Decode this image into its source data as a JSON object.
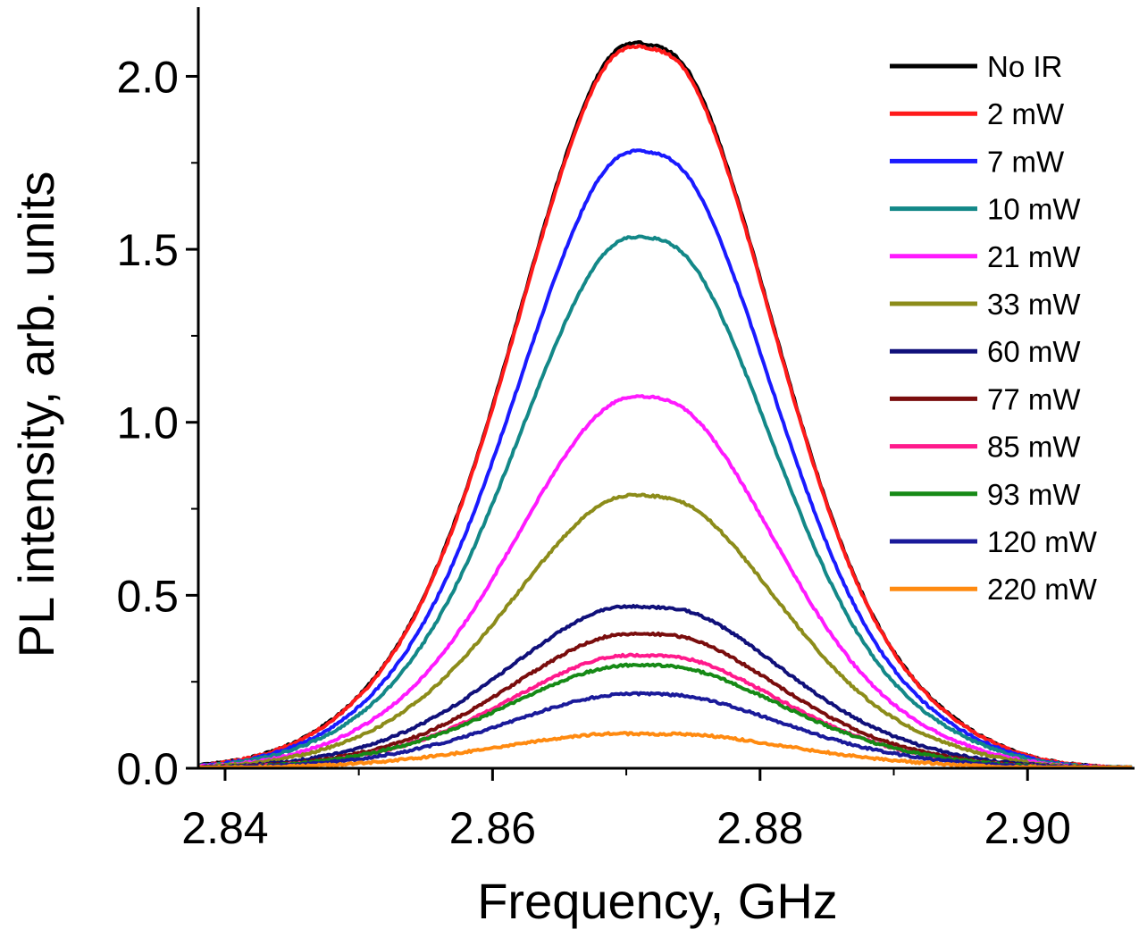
{
  "chart_data": {
    "type": "line",
    "xlabel": "Frequency, GHz",
    "ylabel": "PL intensity, arb. units",
    "xlim": [
      2.838,
      2.908
    ],
    "ylim": [
      0.0,
      2.2
    ],
    "xticks": [
      2.84,
      2.86,
      2.88,
      2.9
    ],
    "xtick_labels": [
      "2.84",
      "2.86",
      "2.88",
      "2.90"
    ],
    "yticks": [
      0.0,
      0.5,
      1.0,
      1.5,
      2.0
    ],
    "ytick_labels": [
      "0.0",
      "0.5",
      "1.0",
      "1.5",
      "2.0"
    ],
    "grid": false,
    "legend_position": "top-right",
    "series": [
      {
        "name": "No IR",
        "color": "#000000",
        "peak": 2.04,
        "dip": 1.93,
        "shoulder": 0.34,
        "sigma": 0.0088
      },
      {
        "name": "2 mW",
        "color": "#ff1a1a",
        "peak": 2.03,
        "dip": 1.92,
        "shoulder": 0.33,
        "sigma": 0.0088
      },
      {
        "name": "7 mW",
        "color": "#1a1aff",
        "peak": 1.73,
        "dip": 1.65,
        "shoulder": 0.29,
        "sigma": 0.0088
      },
      {
        "name": "10 mW",
        "color": "#138888",
        "peak": 1.49,
        "dip": 1.42,
        "shoulder": 0.26,
        "sigma": 0.0088
      },
      {
        "name": "21 mW",
        "color": "#ff1aff",
        "peak": 1.04,
        "dip": 1.0,
        "shoulder": 0.18,
        "sigma": 0.009
      },
      {
        "name": "33 mW",
        "color": "#8c8c1a",
        "peak": 0.77,
        "dip": 0.73,
        "shoulder": 0.13,
        "sigma": 0.0092
      },
      {
        "name": "60 mW",
        "color": "#10107a",
        "peak": 0.46,
        "dip": 0.43,
        "shoulder": 0.06,
        "sigma": 0.0095
      },
      {
        "name": "77 mW",
        "color": "#7a0d0d",
        "peak": 0.38,
        "dip": 0.36,
        "shoulder": 0.05,
        "sigma": 0.0092
      },
      {
        "name": "85 mW",
        "color": "#ff1a8c",
        "peak": 0.32,
        "dip": 0.3,
        "shoulder": 0.04,
        "sigma": 0.0092
      },
      {
        "name": "93 mW",
        "color": "#168a16",
        "peak": 0.29,
        "dip": 0.28,
        "shoulder": 0.04,
        "sigma": 0.0095
      },
      {
        "name": "120 mW",
        "color": "#1a1a9a",
        "peak": 0.21,
        "dip": 0.2,
        "shoulder": 0.03,
        "sigma": 0.0095
      },
      {
        "name": "220 mW",
        "color": "#ff8a10",
        "peak": 0.1,
        "dip": 0.09,
        "shoulder": 0.01,
        "sigma": 0.01
      }
    ]
  }
}
